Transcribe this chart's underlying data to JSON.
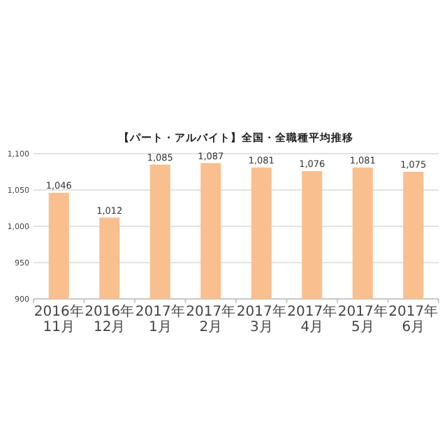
{
  "chart_data": {
    "type": "bar",
    "title": "【パート・アルバイト】全国・全職種平均推移",
    "categories": [
      "2016年11月",
      "2016年12月",
      "2017年1月",
      "2017年2月",
      "2017年3月",
      "2017年4月",
      "2017年5月",
      "2017年6月"
    ],
    "values": [
      1046,
      1012,
      1085,
      1087,
      1081,
      1076,
      1081,
      1075
    ],
    "color": "#f9bf8f",
    "ylim": [
      900,
      1100
    ],
    "yticks": [
      {
        "value": 900,
        "label": "900"
      },
      {
        "value": 950,
        "label": "950"
      },
      {
        "value": 1000,
        "label": "1,000"
      },
      {
        "value": 1050,
        "label": "1,050"
      },
      {
        "value": 1100,
        "label": "1,100"
      }
    ],
    "value_labels": [
      "1,046",
      "1,012",
      "1,085",
      "1,087",
      "1,081",
      "1,076",
      "1,081",
      "1,075"
    ],
    "grid": "y"
  }
}
